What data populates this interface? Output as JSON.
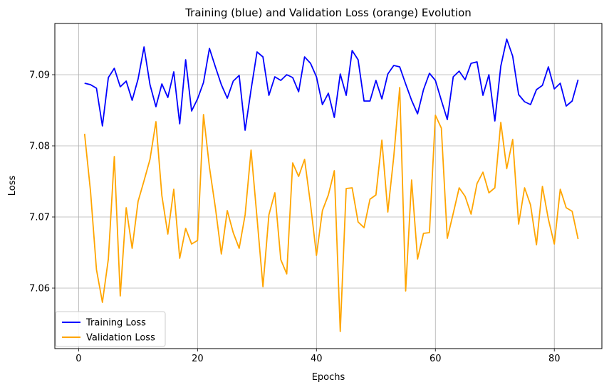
{
  "chart_data": {
    "type": "line",
    "title": "Training (blue) and Validation Loss (orange) Evolution",
    "xlabel": "Epochs",
    "ylabel": "Loss",
    "xlim": [
      -4,
      88
    ],
    "ylim": [
      7.0515,
      7.0972
    ],
    "grid": true,
    "legend_location": "lower-left",
    "x_ticks": [
      0,
      20,
      40,
      60,
      80
    ],
    "x_tick_labels": [
      "0",
      "20",
      "40",
      "60",
      "80"
    ],
    "y_ticks": [
      7.06,
      7.07,
      7.08,
      7.09
    ],
    "y_tick_labels": [
      "7.06",
      "7.07",
      "7.08",
      "7.09"
    ],
    "x": [
      1,
      2,
      3,
      4,
      5,
      6,
      7,
      8,
      9,
      10,
      11,
      12,
      13,
      14,
      15,
      16,
      17,
      18,
      19,
      20,
      21,
      22,
      23,
      24,
      25,
      26,
      27,
      28,
      29,
      30,
      31,
      32,
      33,
      34,
      35,
      36,
      37,
      38,
      39,
      40,
      41,
      42,
      43,
      44,
      45,
      46,
      47,
      48,
      49,
      50,
      51,
      52,
      53,
      54,
      55,
      56,
      57,
      58,
      59,
      60,
      61,
      62,
      63,
      64,
      65,
      66,
      67,
      68,
      69,
      70,
      71,
      72,
      73,
      74,
      75,
      76,
      77,
      78,
      79,
      80,
      81,
      82,
      83,
      84
    ],
    "series": [
      {
        "name": "Training Loss",
        "color": "#0000ff",
        "values": [
          7.0888,
          7.0886,
          7.0881,
          7.0828,
          7.0896,
          7.0909,
          7.0883,
          7.0891,
          7.0864,
          7.0894,
          7.0939,
          7.0886,
          7.0855,
          7.0887,
          7.0868,
          7.0904,
          7.0831,
          7.0921,
          7.0849,
          7.0866,
          7.0889,
          7.0937,
          7.0911,
          7.0886,
          7.0867,
          7.0891,
          7.0899,
          7.0822,
          7.0879,
          7.0932,
          7.0925,
          7.0871,
          7.0897,
          7.0892,
          7.09,
          7.0896,
          7.0876,
          7.0925,
          7.0916,
          7.0897,
          7.0858,
          7.0874,
          7.084,
          7.0901,
          7.0871,
          7.0934,
          7.0921,
          7.0863,
          7.0863,
          7.0892,
          7.0866,
          7.0901,
          7.0913,
          7.0911,
          7.0887,
          7.0864,
          7.0845,
          7.0879,
          7.0902,
          7.0892,
          7.0864,
          7.0837,
          7.0897,
          7.0905,
          7.0893,
          7.0916,
          7.0918,
          7.0871,
          7.09,
          7.0835,
          7.0912,
          7.095,
          7.0926,
          7.0872,
          7.0862,
          7.0858,
          7.0879,
          7.0885,
          7.0911,
          7.088,
          7.0888,
          7.0856,
          7.0863,
          7.0893
        ]
      },
      {
        "name": "Validation Loss",
        "color": "#ffa500",
        "values": [
          7.0817,
          7.0736,
          7.0626,
          7.058,
          7.0641,
          7.0785,
          7.0589,
          7.0713,
          7.0656,
          7.0722,
          7.0751,
          7.0781,
          7.0834,
          7.073,
          7.0676,
          7.0739,
          7.0642,
          7.0684,
          7.0662,
          7.0667,
          7.0844,
          7.077,
          7.0713,
          7.0648,
          7.0709,
          7.0678,
          7.0656,
          7.0703,
          7.0794,
          7.0699,
          7.0602,
          7.0703,
          7.0734,
          7.064,
          7.062,
          7.0776,
          7.0757,
          7.0781,
          7.0718,
          7.0646,
          7.0709,
          7.0731,
          7.0765,
          7.0539,
          7.074,
          7.0741,
          7.0693,
          7.0685,
          7.0725,
          7.0731,
          7.0808,
          7.0707,
          7.0785,
          7.0882,
          7.0596,
          7.0752,
          7.0641,
          7.0677,
          7.0678,
          7.0843,
          7.0825,
          7.067,
          7.0705,
          7.0741,
          7.0729,
          7.0704,
          7.0747,
          7.0763,
          7.0734,
          7.0741,
          7.0833,
          7.0768,
          7.0809,
          7.069,
          7.0741,
          7.0717,
          7.0661,
          7.0743,
          7.0697,
          7.0662,
          7.0739,
          7.0713,
          7.0708,
          7.0669
        ]
      }
    ]
  }
}
